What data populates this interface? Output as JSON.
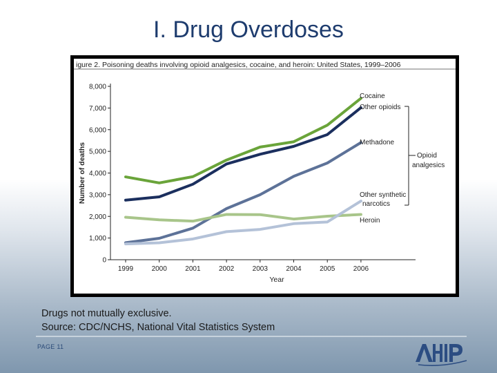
{
  "slide": {
    "title": "I. Drug Overdoses",
    "note_line1": "Drugs not mutually exclusive.",
    "note_line2": "Source: CDC/NCHS, National Vital Statistics System",
    "page_label": "PAGE 11",
    "logo_text": "AHIP"
  },
  "chart_data": {
    "type": "line",
    "title": "igure 2. Poisoning deaths involving opioid analgesics, cocaine, and heroin: United States, 1999–2006",
    "xlabel": "Year",
    "ylabel": "Number of deaths",
    "categories": [
      "1999",
      "2000",
      "2001",
      "2002",
      "2003",
      "2004",
      "2005",
      "2006"
    ],
    "y_ticks": [
      "0",
      "1,000",
      "2,000",
      "3,000",
      "4,000",
      "5,000",
      "6,000",
      "7,000",
      "8,000"
    ],
    "ylim": [
      0,
      8000
    ],
    "series": [
      {
        "name": "Cocaine",
        "color": "#6aa43a",
        "values": [
          3822,
          3544,
          3833,
          4599,
          5199,
          5443,
          6208,
          7448
        ]
      },
      {
        "name": "Other opioids",
        "color": "#1b2f5e",
        "values": [
          2749,
          2900,
          3484,
          4416,
          4867,
          5231,
          5774,
          7017
        ]
      },
      {
        "name": "Methadone",
        "color": "#5d7298",
        "values": [
          786,
          988,
          1456,
          2358,
          3000,
          3849,
          4462,
          5406
        ]
      },
      {
        "name": "Heroin",
        "color": "#a8c58a",
        "values": [
          1960,
          1842,
          1779,
          2089,
          2080,
          1878,
          2009,
          2088
        ]
      },
      {
        "name": "Other synthetic narcotics",
        "color": "#b4c2d8",
        "values": [
          730,
          782,
          957,
          1295,
          1400,
          1664,
          1742,
          2707
        ]
      }
    ],
    "bracket_label_line1": "Opioid",
    "bracket_label_line2": "analgesics",
    "other_synthetic_line1": "Other synthetic",
    "other_synthetic_line2": "narcotics",
    "legend": "right"
  }
}
